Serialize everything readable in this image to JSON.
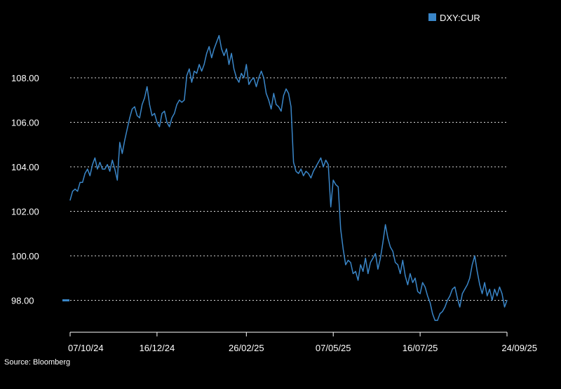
{
  "chart_data": {
    "type": "line",
    "title": "",
    "xlabel": "",
    "ylabel": "",
    "legend": {
      "position": "top-right",
      "entries": [
        {
          "name": "DXY:CUR",
          "color": "#3a86c8"
        }
      ]
    },
    "y_ticks": [
      "98.00",
      "100.00",
      "102.00",
      "104.00",
      "106.00",
      "108.00"
    ],
    "y_tick_values": [
      98,
      100,
      102,
      104,
      106,
      108
    ],
    "ylim": [
      96.8,
      110.2
    ],
    "x_ticks": [
      "07/10/24",
      "16/12/24",
      "26/02/25",
      "07/05/25",
      "16/07/25",
      "24/09/25"
    ],
    "xlim": [
      "2024-10-07",
      "2025-09-24"
    ],
    "grid": "horizontal dotted",
    "last_value_marker": 98.0,
    "series": [
      {
        "name": "DXY:CUR",
        "color": "#3a86c8",
        "points": [
          [
            "2024-10-07",
            102.5
          ],
          [
            "2024-10-09",
            102.9
          ],
          [
            "2024-10-11",
            103.0
          ],
          [
            "2024-10-13",
            102.9
          ],
          [
            "2024-10-15",
            103.3
          ],
          [
            "2024-10-17",
            103.3
          ],
          [
            "2024-10-19",
            103.7
          ],
          [
            "2024-10-21",
            103.9
          ],
          [
            "2024-10-23",
            103.6
          ],
          [
            "2024-10-25",
            104.1
          ],
          [
            "2024-10-27",
            104.4
          ],
          [
            "2024-10-29",
            103.9
          ],
          [
            "2024-10-31",
            104.2
          ],
          [
            "2024-11-02",
            103.9
          ],
          [
            "2024-11-04",
            103.9
          ],
          [
            "2024-11-06",
            104.1
          ],
          [
            "2024-11-08",
            103.8
          ],
          [
            "2024-11-10",
            104.3
          ],
          [
            "2024-11-12",
            103.9
          ],
          [
            "2024-11-14",
            103.4
          ],
          [
            "2024-11-16",
            105.1
          ],
          [
            "2024-11-18",
            104.6
          ],
          [
            "2024-11-20",
            105.2
          ],
          [
            "2024-11-22",
            105.7
          ],
          [
            "2024-11-24",
            106.2
          ],
          [
            "2024-11-26",
            106.6
          ],
          [
            "2024-11-28",
            106.7
          ],
          [
            "2024-11-30",
            106.3
          ],
          [
            "2024-12-02",
            106.2
          ],
          [
            "2024-12-04",
            106.8
          ],
          [
            "2024-12-06",
            107.1
          ],
          [
            "2024-12-08",
            107.6
          ],
          [
            "2024-12-10",
            106.8
          ],
          [
            "2024-12-12",
            106.3
          ],
          [
            "2024-12-14",
            106.4
          ],
          [
            "2024-12-16",
            106.0
          ],
          [
            "2024-12-18",
            105.8
          ],
          [
            "2024-12-20",
            106.4
          ],
          [
            "2024-12-22",
            106.5
          ],
          [
            "2024-12-24",
            106.0
          ],
          [
            "2024-12-26",
            105.8
          ],
          [
            "2024-12-28",
            106.2
          ],
          [
            "2024-12-30",
            106.4
          ],
          [
            "2025-01-01",
            106.8
          ],
          [
            "2025-01-03",
            107.0
          ],
          [
            "2025-01-05",
            106.9
          ],
          [
            "2025-01-07",
            107.0
          ],
          [
            "2025-01-09",
            108.1
          ],
          [
            "2025-01-11",
            108.4
          ],
          [
            "2025-01-13",
            107.8
          ],
          [
            "2025-01-15",
            108.3
          ],
          [
            "2025-01-17",
            108.2
          ],
          [
            "2025-01-19",
            108.6
          ],
          [
            "2025-01-21",
            108.3
          ],
          [
            "2025-01-23",
            108.6
          ],
          [
            "2025-01-25",
            109.1
          ],
          [
            "2025-01-27",
            109.4
          ],
          [
            "2025-01-29",
            108.9
          ],
          [
            "2025-01-31",
            109.3
          ],
          [
            "2025-02-02",
            109.6
          ],
          [
            "2025-02-04",
            109.9
          ],
          [
            "2025-02-06",
            109.3
          ],
          [
            "2025-02-08",
            109.0
          ],
          [
            "2025-02-10",
            109.3
          ],
          [
            "2025-02-12",
            108.6
          ],
          [
            "2025-02-14",
            109.1
          ],
          [
            "2025-02-16",
            108.4
          ],
          [
            "2025-02-18",
            108.0
          ],
          [
            "2025-02-20",
            107.8
          ],
          [
            "2025-02-22",
            108.2
          ],
          [
            "2025-02-24",
            108.0
          ],
          [
            "2025-02-26",
            108.6
          ],
          [
            "2025-02-28",
            107.7
          ],
          [
            "2025-03-02",
            107.9
          ],
          [
            "2025-03-04",
            108.0
          ],
          [
            "2025-03-06",
            107.6
          ],
          [
            "2025-03-08",
            108.0
          ],
          [
            "2025-03-10",
            108.3
          ],
          [
            "2025-03-12",
            108.0
          ],
          [
            "2025-03-14",
            107.3
          ],
          [
            "2025-03-16",
            107.0
          ],
          [
            "2025-03-18",
            106.6
          ],
          [
            "2025-03-20",
            107.3
          ],
          [
            "2025-03-22",
            106.8
          ],
          [
            "2025-03-24",
            106.7
          ],
          [
            "2025-03-26",
            106.5
          ],
          [
            "2025-03-28",
            107.2
          ],
          [
            "2025-03-30",
            107.5
          ],
          [
            "2025-04-01",
            107.3
          ],
          [
            "2025-04-03",
            106.7
          ],
          [
            "2025-04-05",
            104.2
          ],
          [
            "2025-04-07",
            103.8
          ],
          [
            "2025-04-09",
            103.7
          ],
          [
            "2025-04-11",
            103.9
          ],
          [
            "2025-04-13",
            103.6
          ],
          [
            "2025-04-15",
            103.8
          ],
          [
            "2025-04-17",
            103.7
          ],
          [
            "2025-04-19",
            103.5
          ],
          [
            "2025-04-21",
            103.8
          ],
          [
            "2025-04-23",
            104.0
          ],
          [
            "2025-04-25",
            104.2
          ],
          [
            "2025-04-27",
            104.4
          ],
          [
            "2025-04-29",
            104.0
          ],
          [
            "2025-05-01",
            104.3
          ],
          [
            "2025-05-03",
            104.1
          ],
          [
            "2025-05-05",
            102.2
          ],
          [
            "2025-05-07",
            103.4
          ],
          [
            "2025-05-09",
            103.2
          ],
          [
            "2025-05-11",
            103.1
          ],
          [
            "2025-05-13",
            101.2
          ],
          [
            "2025-05-15",
            100.3
          ],
          [
            "2025-05-17",
            99.6
          ],
          [
            "2025-05-19",
            99.8
          ],
          [
            "2025-05-21",
            99.7
          ],
          [
            "2025-05-23",
            99.2
          ],
          [
            "2025-05-25",
            99.3
          ],
          [
            "2025-05-27",
            98.9
          ],
          [
            "2025-05-29",
            99.6
          ],
          [
            "2025-05-31",
            99.3
          ],
          [
            "2025-06-02",
            99.9
          ],
          [
            "2025-06-04",
            99.2
          ],
          [
            "2025-06-06",
            99.7
          ],
          [
            "2025-06-08",
            99.9
          ],
          [
            "2025-06-10",
            100.1
          ],
          [
            "2025-06-12",
            99.4
          ],
          [
            "2025-06-14",
            99.9
          ],
          [
            "2025-06-16",
            100.6
          ],
          [
            "2025-06-18",
            101.4
          ],
          [
            "2025-06-20",
            100.8
          ],
          [
            "2025-06-22",
            100.4
          ],
          [
            "2025-06-24",
            100.2
          ],
          [
            "2025-06-26",
            99.7
          ],
          [
            "2025-06-28",
            99.6
          ],
          [
            "2025-06-30",
            99.2
          ],
          [
            "2025-07-02",
            99.8
          ],
          [
            "2025-07-04",
            99.1
          ],
          [
            "2025-07-06",
            98.7
          ],
          [
            "2025-07-08",
            99.2
          ],
          [
            "2025-07-10",
            98.8
          ],
          [
            "2025-07-12",
            99.0
          ],
          [
            "2025-07-14",
            98.4
          ],
          [
            "2025-07-16",
            98.3
          ],
          [
            "2025-07-18",
            98.8
          ],
          [
            "2025-07-20",
            98.6
          ],
          [
            "2025-07-22",
            98.2
          ],
          [
            "2025-07-24",
            97.9
          ],
          [
            "2025-07-26",
            97.4
          ],
          [
            "2025-07-28",
            97.1
          ],
          [
            "2025-07-30",
            97.1
          ],
          [
            "2025-08-01",
            97.4
          ],
          [
            "2025-08-03",
            97.5
          ],
          [
            "2025-08-05",
            97.7
          ],
          [
            "2025-08-07",
            98.0
          ],
          [
            "2025-08-09",
            98.2
          ],
          [
            "2025-08-11",
            98.5
          ],
          [
            "2025-08-13",
            98.6
          ],
          [
            "2025-08-15",
            98.1
          ],
          [
            "2025-08-17",
            97.7
          ],
          [
            "2025-08-19",
            98.3
          ],
          [
            "2025-08-21",
            98.5
          ],
          [
            "2025-08-23",
            98.7
          ],
          [
            "2025-08-25",
            99.0
          ],
          [
            "2025-08-27",
            99.6
          ],
          [
            "2025-08-29",
            100.0
          ],
          [
            "2025-08-31",
            99.3
          ],
          [
            "2025-09-02",
            98.7
          ],
          [
            "2025-09-04",
            98.3
          ],
          [
            "2025-09-06",
            98.8
          ],
          [
            "2025-09-08",
            98.2
          ],
          [
            "2025-09-10",
            98.5
          ],
          [
            "2025-09-12",
            98.0
          ],
          [
            "2025-09-14",
            98.5
          ],
          [
            "2025-09-16",
            98.2
          ],
          [
            "2025-09-18",
            98.6
          ],
          [
            "2025-09-20",
            98.3
          ],
          [
            "2025-09-22",
            97.7
          ],
          [
            "2025-09-24",
            98.0
          ]
        ]
      }
    ]
  },
  "source": "Source: Bloomberg"
}
